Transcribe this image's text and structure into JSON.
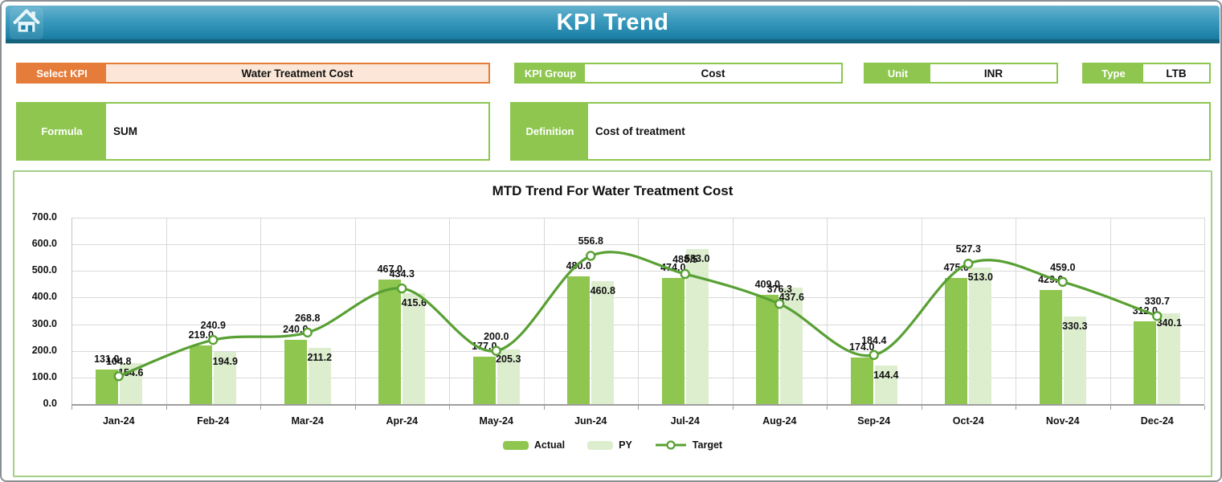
{
  "header": {
    "title": "KPI Trend",
    "home_icon": "home-icon"
  },
  "filters": {
    "select_kpi": {
      "label": "Select KPI",
      "value": "Water Treatment Cost"
    },
    "kpi_group": {
      "label": "KPI Group",
      "value": "Cost"
    },
    "unit": {
      "label": "Unit",
      "value": "INR"
    },
    "type": {
      "label": "Type",
      "value": "LTB"
    },
    "formula": {
      "label": "Formula",
      "value": "SUM"
    },
    "definition": {
      "label": "Definition",
      "value": "Cost of treatment"
    }
  },
  "chart_data": {
    "type": "bar",
    "title": "MTD Trend For Water Treatment Cost",
    "categories": [
      "Jan-24",
      "Feb-24",
      "Mar-24",
      "Apr-24",
      "May-24",
      "Jun-24",
      "Jul-24",
      "Aug-24",
      "Sep-24",
      "Oct-24",
      "Nov-24",
      "Dec-24"
    ],
    "series": [
      {
        "name": "Actual",
        "kind": "bar",
        "color": "#8ec64f",
        "values": [
          131.0,
          219.0,
          240.0,
          467.0,
          177.0,
          480.0,
          474.0,
          409.0,
          174.0,
          475.0,
          429.0,
          312.0
        ]
      },
      {
        "name": "PY",
        "kind": "bar",
        "color": "#ddeecf",
        "values": [
          154.6,
          194.9,
          211.2,
          415.6,
          205.3,
          460.8,
          583.0,
          437.6,
          144.4,
          513.0,
          330.3,
          340.1
        ]
      },
      {
        "name": "Target",
        "kind": "line",
        "color": "#58a033",
        "values": [
          104.8,
          240.9,
          268.8,
          434.3,
          200.0,
          556.8,
          488.5,
          376.3,
          184.4,
          527.3,
          459.0,
          330.7
        ]
      }
    ],
    "xlabel": "",
    "ylabel": "",
    "ylim": [
      0,
      700
    ],
    "ytick_step": 100,
    "yticks": [
      "0.0",
      "100.0",
      "200.0",
      "300.0",
      "400.0",
      "500.0",
      "600.0",
      "700.0"
    ],
    "grid": true,
    "legend_position": "bottom",
    "data_labels": true
  },
  "colors": {
    "header_top": "#66b2d0",
    "header_bottom": "#1a7aa0",
    "header_edge": "#15627d",
    "accent_orange": "#e57c39",
    "orange_fill": "#fbe6d7",
    "accent_green": "#8ec64f",
    "py_green": "#ddeecf",
    "line_green": "#58a033",
    "panel_border": "#a3cf87",
    "gridline": "#d9d9d9"
  }
}
